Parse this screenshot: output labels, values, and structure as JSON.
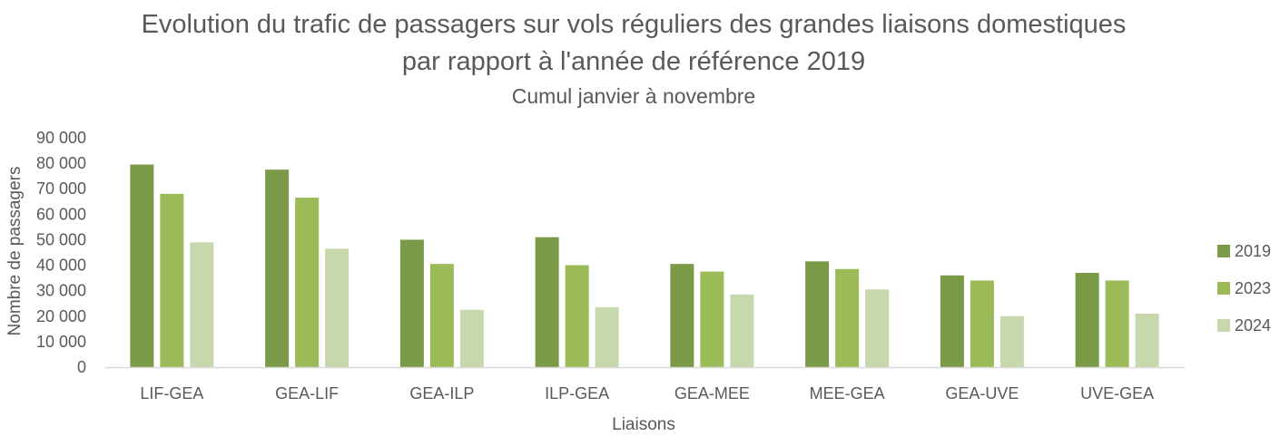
{
  "chart_data": {
    "type": "bar",
    "title": "Evolution du trafic de passagers sur vols réguliers des grandes liaisons domestiques",
    "title_line2": "par rapport à l'année de référence 2019",
    "subtitle": "Cumul janvier à novembre",
    "xlabel": "Liaisons",
    "ylabel": "Nombre de passagers",
    "ylim": [
      0,
      90000
    ],
    "yticks": [
      0,
      10000,
      20000,
      30000,
      40000,
      50000,
      60000,
      70000,
      80000,
      90000
    ],
    "ytick_labels": [
      "0",
      "10 000",
      "20 000",
      "30 000",
      "40 000",
      "50 000",
      "60 000",
      "70 000",
      "80 000",
      "90 000"
    ],
    "categories": [
      "LIF-GEA",
      "GEA-LIF",
      "GEA-ILP",
      "ILP-GEA",
      "GEA-MEE",
      "MEE-GEA",
      "GEA-UVE",
      "UVE-GEA"
    ],
    "series": [
      {
        "name": "2019",
        "color": "#7b9a47",
        "values": [
          79500,
          77500,
          50000,
          51000,
          40500,
          41500,
          36000,
          37000
        ]
      },
      {
        "name": "2023",
        "color": "#9bbb59",
        "values": [
          68000,
          66500,
          40500,
          40000,
          37500,
          38500,
          34000,
          34000
        ]
      },
      {
        "name": "2024",
        "color": "#c8d8ad",
        "values": [
          49000,
          46500,
          22500,
          23500,
          28500,
          30500,
          20000,
          21000
        ]
      }
    ],
    "grid": false,
    "legend_position": "right"
  }
}
